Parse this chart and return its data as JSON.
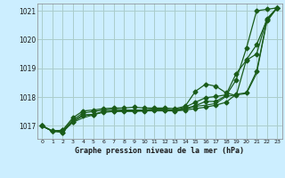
{
  "title": "Graphe pression niveau de la mer (hPa)",
  "bg_color": "#cceeff",
  "grid_color": "#aacccc",
  "line_color": "#1a5c1a",
  "xlim": [
    -0.5,
    23.5
  ],
  "ylim": [
    1016.55,
    1021.25
  ],
  "yticks": [
    1017,
    1018,
    1019,
    1020,
    1021
  ],
  "xticks": [
    0,
    1,
    2,
    3,
    4,
    5,
    6,
    7,
    8,
    9,
    10,
    11,
    12,
    13,
    14,
    15,
    16,
    17,
    18,
    19,
    20,
    21,
    22,
    23
  ],
  "series": [
    {
      "y": [
        1017.0,
        1016.82,
        1016.78,
        1017.15,
        1017.38,
        1017.4,
        1017.48,
        1017.5,
        1017.52,
        1017.52,
        1017.52,
        1017.55,
        1017.55,
        1017.52,
        1017.55,
        1017.6,
        1017.65,
        1017.72,
        1017.82,
        1018.1,
        1018.15,
        1018.9,
        1020.65,
        1021.1
      ],
      "marker": "D",
      "linestyle": "-",
      "linewidth": 0.9,
      "markersize": 2.5
    },
    {
      "y": [
        1017.0,
        1016.82,
        1016.78,
        1017.15,
        1017.35,
        1017.4,
        1017.5,
        1017.52,
        1017.55,
        1017.55,
        1017.55,
        1017.58,
        1017.58,
        1017.55,
        1017.6,
        1017.7,
        1017.85,
        1017.85,
        1018.05,
        1018.6,
        1019.7,
        1021.0,
        1021.05,
        1021.1
      ],
      "marker": "D",
      "linestyle": "-",
      "linewidth": 0.9,
      "markersize": 2.5
    },
    {
      "y": [
        1017.0,
        1016.82,
        1016.85,
        1017.28,
        1017.52,
        1017.55,
        1017.6,
        1017.62,
        1017.62,
        1017.65,
        1017.62,
        1017.62,
        1017.62,
        1017.6,
        1017.68,
        1018.2,
        1018.45,
        1018.38,
        1018.15,
        1018.05,
        1019.3,
        1019.82,
        1020.68,
        1021.1
      ],
      "marker": "D",
      "linestyle": "-",
      "linewidth": 0.9,
      "markersize": 2.5
    },
    {
      "y": [
        1017.0,
        1016.82,
        1016.85,
        1017.2,
        1017.45,
        1017.5,
        1017.55,
        1017.58,
        1017.55,
        1017.55,
        1017.55,
        1017.58,
        1017.55,
        1017.55,
        1017.65,
        1017.82,
        1017.98,
        1018.02,
        1018.08,
        1018.82,
        1019.28,
        1019.5,
        1020.72,
        1021.1
      ],
      "marker": "D",
      "linestyle": "-",
      "linewidth": 0.9,
      "markersize": 2.5
    },
    {
      "y": [
        1017.0,
        1016.82,
        1016.82,
        1017.12,
        1017.28,
        1017.38,
        1017.48,
        1017.5,
        1017.5,
        1017.5,
        1017.52,
        1017.52,
        1017.52,
        1017.52,
        1017.58,
        1017.68,
        1017.72,
        1017.78,
        1018.02,
        1018.08,
        1018.12,
        1018.82,
        1020.62,
        1021.1
      ],
      "marker": null,
      "linestyle": "-",
      "linewidth": 0.8,
      "markersize": 0
    }
  ]
}
